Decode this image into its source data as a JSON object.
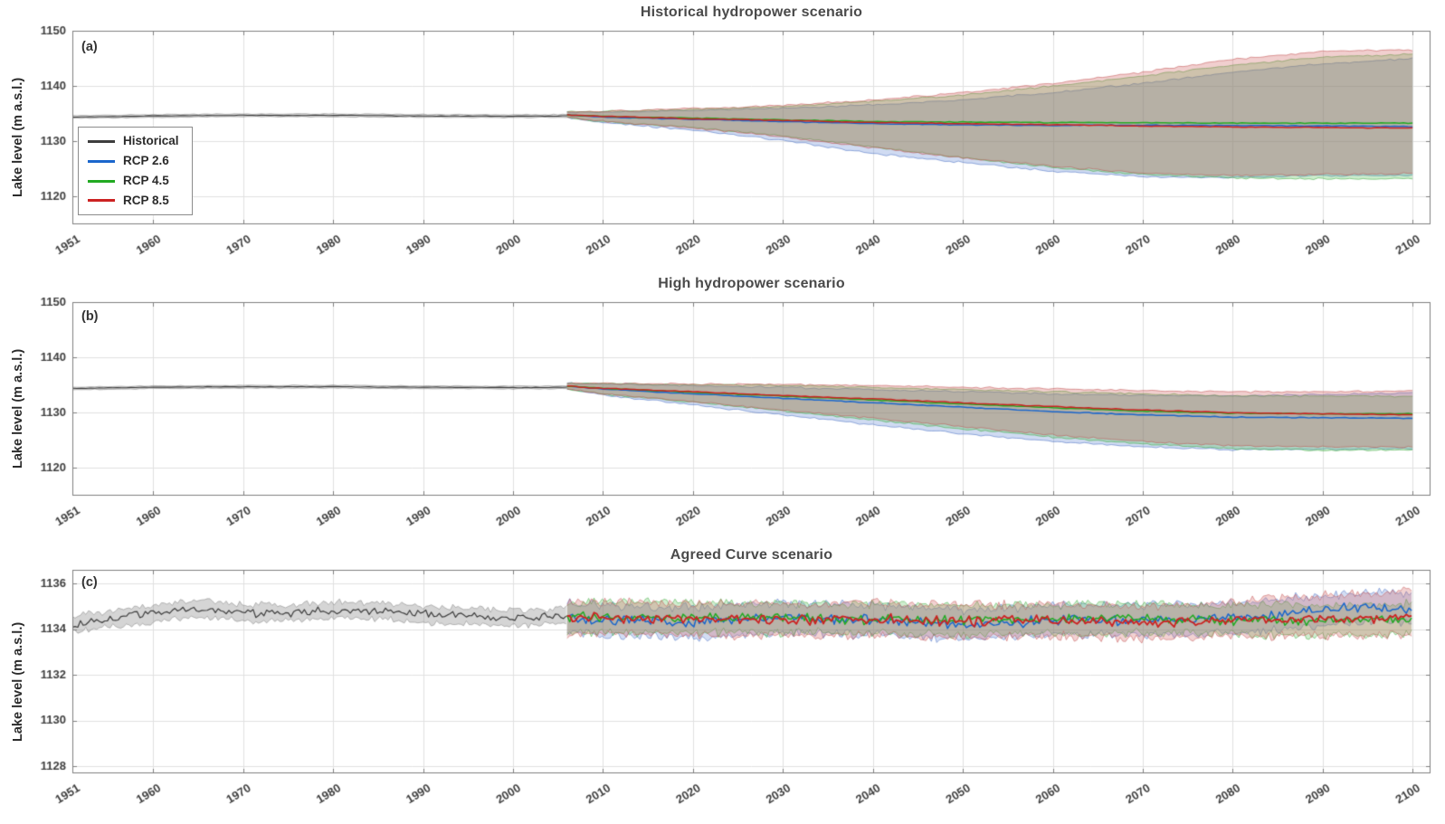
{
  "figure": {
    "background": "#ffffff"
  },
  "legend": {
    "position": "upper-left-inside-panel-a",
    "items": [
      {
        "label": "Historical",
        "color": "#3d3d3d"
      },
      {
        "label": "RCP 2.6",
        "color": "#1a66cc"
      },
      {
        "label": "RCP 4.5",
        "color": "#22aa22"
      },
      {
        "label": "RCP 8.5",
        "color": "#cc2222"
      }
    ]
  },
  "chart_data": [
    {
      "type": "line",
      "panel_label": "(a)",
      "title": "Historical hydropower scenario",
      "xlabel": "",
      "ylabel": "Lake level (m a.s.l.)",
      "xlim": [
        1951,
        2102
      ],
      "ylim": [
        1115,
        1150
      ],
      "xticks": [
        1951,
        1960,
        1970,
        1980,
        1990,
        2000,
        2010,
        2020,
        2030,
        2040,
        2050,
        2060,
        2070,
        2080,
        2090,
        2100
      ],
      "yticks": [
        1120,
        1130,
        1140,
        1150
      ],
      "grid": true,
      "show_legend": true,
      "series": [
        {
          "name": "Historical",
          "color": "#3d3d3d",
          "band_color": "rgba(125,125,125,0.30)",
          "band_edge": "rgba(110,110,110,0.45)",
          "line_width": 1.1,
          "step": 0.5,
          "line_amp": 0.07,
          "band_amp": 0.1,
          "x": [
            1951,
            1960,
            1970,
            1980,
            1990,
            2000,
            2006
          ],
          "y": [
            1134.4,
            1134.6,
            1134.7,
            1134.7,
            1134.6,
            1134.55,
            1134.6
          ],
          "band_low": [
            1134.15,
            1134.35,
            1134.45,
            1134.45,
            1134.35,
            1134.3,
            1134.35
          ],
          "band_high": [
            1134.65,
            1134.85,
            1134.95,
            1134.95,
            1134.85,
            1134.8,
            1134.85
          ]
        },
        {
          "name": "RCP 2.6",
          "color": "#1a66cc",
          "band_color": "rgba(85,125,210,0.28)",
          "band_edge": "rgba(70,110,195,0.55)",
          "line_width": 1.5,
          "step": 0.5,
          "line_amp": 0.09,
          "band_amp": 0.2,
          "x": [
            2006,
            2010,
            2020,
            2030,
            2040,
            2050,
            2060,
            2070,
            2080,
            2090,
            2100
          ],
          "y": [
            1134.8,
            1134.4,
            1134.0,
            1133.6,
            1133.2,
            1133.0,
            1132.9,
            1132.9,
            1132.9,
            1132.8,
            1132.7
          ],
          "band_low": [
            1134.3,
            1133.4,
            1132.0,
            1130.2,
            1127.8,
            1126.2,
            1124.6,
            1123.6,
            1123.5,
            1123.8,
            1123.8
          ],
          "band_high": [
            1135.3,
            1135.3,
            1135.6,
            1136.0,
            1136.6,
            1137.5,
            1138.8,
            1140.5,
            1142.5,
            1144.0,
            1145.0
          ]
        },
        {
          "name": "RCP 4.5",
          "color": "#22aa22",
          "band_color": "rgba(75,190,75,0.28)",
          "band_edge": "rgba(60,170,60,0.55)",
          "line_width": 1.5,
          "step": 0.5,
          "line_amp": 0.09,
          "band_amp": 0.2,
          "x": [
            2006,
            2010,
            2020,
            2030,
            2040,
            2050,
            2060,
            2070,
            2080,
            2090,
            2100
          ],
          "y": [
            1134.8,
            1134.5,
            1134.2,
            1133.9,
            1133.6,
            1133.5,
            1133.4,
            1133.4,
            1133.3,
            1133.3,
            1133.3
          ],
          "band_low": [
            1134.3,
            1133.6,
            1132.5,
            1131.0,
            1129.0,
            1127.0,
            1125.3,
            1124.0,
            1123.4,
            1123.2,
            1123.2
          ],
          "band_high": [
            1135.3,
            1135.4,
            1135.8,
            1136.3,
            1137.2,
            1138.4,
            1140.0,
            1141.8,
            1143.8,
            1145.2,
            1145.8
          ]
        },
        {
          "name": "RCP 8.5",
          "color": "#cc2222",
          "band_color": "rgba(210,95,95,0.30)",
          "band_edge": "rgba(195,80,80,0.55)",
          "line_width": 1.5,
          "step": 0.5,
          "line_amp": 0.09,
          "band_amp": 0.2,
          "x": [
            2006,
            2010,
            2020,
            2030,
            2040,
            2050,
            2060,
            2070,
            2080,
            2090,
            2100
          ],
          "y": [
            1134.8,
            1134.5,
            1134.1,
            1133.8,
            1133.4,
            1133.2,
            1133.0,
            1132.8,
            1132.6,
            1132.5,
            1132.4
          ],
          "band_low": [
            1134.3,
            1133.6,
            1132.4,
            1130.8,
            1128.8,
            1127.0,
            1125.5,
            1124.3,
            1123.8,
            1124.0,
            1124.2
          ],
          "band_high": [
            1135.3,
            1135.4,
            1135.9,
            1136.5,
            1137.5,
            1138.8,
            1140.5,
            1142.5,
            1144.8,
            1146.3,
            1146.5
          ]
        }
      ]
    },
    {
      "type": "line",
      "panel_label": "(b)",
      "title": "High hydropower scenario",
      "xlabel": "",
      "ylabel": "Lake level (m a.s.l.)",
      "xlim": [
        1951,
        2102
      ],
      "ylim": [
        1115,
        1150
      ],
      "xticks": [
        1951,
        1960,
        1970,
        1980,
        1990,
        2000,
        2010,
        2020,
        2030,
        2040,
        2050,
        2060,
        2070,
        2080,
        2090,
        2100
      ],
      "yticks": [
        1120,
        1130,
        1140,
        1150
      ],
      "grid": true,
      "show_legend": false,
      "series": [
        {
          "name": "Historical",
          "color": "#3d3d3d",
          "band_color": "rgba(125,125,125,0.30)",
          "band_edge": "rgba(110,110,110,0.45)",
          "line_width": 1.1,
          "step": 0.5,
          "line_amp": 0.07,
          "band_amp": 0.1,
          "x": [
            1951,
            1960,
            1970,
            1980,
            1990,
            2000,
            2006
          ],
          "y": [
            1134.4,
            1134.6,
            1134.7,
            1134.7,
            1134.6,
            1134.55,
            1134.6
          ],
          "band_low": [
            1134.15,
            1134.35,
            1134.45,
            1134.45,
            1134.35,
            1134.3,
            1134.35
          ],
          "band_high": [
            1134.65,
            1134.85,
            1134.95,
            1134.95,
            1134.85,
            1134.8,
            1134.85
          ]
        },
        {
          "name": "RCP 2.6",
          "color": "#1a66cc",
          "band_color": "rgba(85,125,210,0.28)",
          "band_edge": "rgba(70,110,195,0.55)",
          "line_width": 1.5,
          "step": 0.5,
          "line_amp": 0.09,
          "band_amp": 0.2,
          "x": [
            2006,
            2010,
            2020,
            2030,
            2040,
            2050,
            2060,
            2070,
            2080,
            2090,
            2100
          ],
          "y": [
            1134.8,
            1134.3,
            1133.4,
            1132.6,
            1131.8,
            1131.0,
            1130.2,
            1129.6,
            1129.2,
            1129.1,
            1129.0
          ],
          "band_low": [
            1134.3,
            1133.2,
            1131.4,
            1129.6,
            1127.8,
            1126.2,
            1124.8,
            1123.8,
            1123.3,
            1123.4,
            1123.5
          ],
          "band_high": [
            1135.3,
            1135.2,
            1134.9,
            1134.6,
            1134.2,
            1133.8,
            1133.4,
            1133.1,
            1133.0,
            1133.3,
            1133.6
          ]
        },
        {
          "name": "RCP 4.5",
          "color": "#22aa22",
          "band_color": "rgba(75,190,75,0.28)",
          "band_edge": "rgba(60,170,60,0.55)",
          "line_width": 1.5,
          "step": 0.5,
          "line_amp": 0.09,
          "band_amp": 0.2,
          "x": [
            2006,
            2010,
            2020,
            2030,
            2040,
            2050,
            2060,
            2070,
            2080,
            2090,
            2100
          ],
          "y": [
            1134.8,
            1134.4,
            1133.7,
            1133.0,
            1132.3,
            1131.6,
            1130.9,
            1130.3,
            1129.9,
            1129.8,
            1129.8
          ],
          "band_low": [
            1134.3,
            1133.4,
            1131.9,
            1130.3,
            1128.7,
            1127.1,
            1125.6,
            1124.4,
            1123.5,
            1123.2,
            1123.2
          ],
          "band_high": [
            1135.3,
            1135.3,
            1135.1,
            1134.9,
            1134.6,
            1134.2,
            1133.8,
            1133.4,
            1133.1,
            1133.0,
            1133.0
          ]
        },
        {
          "name": "RCP 8.5",
          "color": "#cc2222",
          "band_color": "rgba(210,95,95,0.30)",
          "band_edge": "rgba(195,80,80,0.55)",
          "line_width": 1.5,
          "step": 0.5,
          "line_amp": 0.09,
          "band_amp": 0.2,
          "x": [
            2006,
            2010,
            2020,
            2030,
            2040,
            2050,
            2060,
            2070,
            2080,
            2090,
            2100
          ],
          "y": [
            1134.8,
            1134.4,
            1133.8,
            1133.1,
            1132.5,
            1131.8,
            1131.1,
            1130.5,
            1130.0,
            1129.8,
            1129.6
          ],
          "band_low": [
            1134.3,
            1133.4,
            1132.0,
            1130.5,
            1129.0,
            1127.5,
            1126.0,
            1124.8,
            1124.0,
            1123.8,
            1123.8
          ],
          "band_high": [
            1135.3,
            1135.3,
            1135.2,
            1135.1,
            1134.9,
            1134.6,
            1134.3,
            1134.0,
            1133.8,
            1133.8,
            1133.9
          ]
        }
      ]
    },
    {
      "type": "line",
      "panel_label": "(c)",
      "title": "Agreed Curve scenario",
      "xlabel": "",
      "ylabel": "Lake level (m a.s.l.)",
      "xlim": [
        1951,
        2102
      ],
      "ylim": [
        1127.7,
        1136.6
      ],
      "xticks": [
        1951,
        1960,
        1970,
        1980,
        1990,
        2000,
        2010,
        2020,
        2030,
        2040,
        2050,
        2060,
        2070,
        2080,
        2090,
        2100
      ],
      "yticks": [
        1128,
        1130,
        1132,
        1134,
        1136
      ],
      "grid": true,
      "show_legend": false,
      "series": [
        {
          "name": "Historical",
          "color": "#3d3d3d",
          "band_color": "rgba(125,125,125,0.32)",
          "band_edge": "rgba(110,110,110,0.45)",
          "line_width": 1.2,
          "step": 0.3,
          "line_amp": 0.22,
          "band_amp": 0.18,
          "x": [
            1951,
            1956,
            1961,
            1966,
            1971,
            1976,
            1981,
            1986,
            1991,
            1996,
            2001,
            2006
          ],
          "y": [
            1134.2,
            1134.5,
            1134.75,
            1134.9,
            1134.7,
            1134.75,
            1134.85,
            1134.8,
            1134.6,
            1134.55,
            1134.5,
            1134.55
          ],
          "band_low": [
            1133.85,
            1134.15,
            1134.4,
            1134.55,
            1134.35,
            1134.4,
            1134.5,
            1134.45,
            1134.25,
            1134.2,
            1134.15,
            1134.2
          ],
          "band_high": [
            1134.55,
            1134.85,
            1135.1,
            1135.25,
            1135.05,
            1135.1,
            1135.2,
            1135.15,
            1134.95,
            1134.9,
            1134.85,
            1134.9
          ]
        },
        {
          "name": "RCP 2.6",
          "color": "#1a66cc",
          "band_color": "rgba(85,125,210,0.26)",
          "band_edge": "rgba(70,110,195,0.5)",
          "line_width": 1.5,
          "step": 0.3,
          "line_amp": 0.26,
          "band_amp": 0.25,
          "x": [
            2006,
            2010,
            2020,
            2030,
            2040,
            2050,
            2060,
            2070,
            2080,
            2090,
            2095,
            2100
          ],
          "y": [
            1134.5,
            1134.4,
            1134.3,
            1134.5,
            1134.4,
            1134.2,
            1134.4,
            1134.4,
            1134.5,
            1134.8,
            1135.0,
            1134.9
          ],
          "band_low": [
            1133.85,
            1133.75,
            1133.65,
            1133.85,
            1133.75,
            1133.55,
            1133.75,
            1133.75,
            1133.85,
            1134.15,
            1134.35,
            1134.25
          ],
          "band_high": [
            1135.15,
            1135.05,
            1134.95,
            1135.15,
            1135.05,
            1134.85,
            1135.05,
            1135.05,
            1135.15,
            1135.45,
            1135.65,
            1135.55
          ]
        },
        {
          "name": "RCP 4.5",
          "color": "#22aa22",
          "band_color": "rgba(75,190,75,0.26)",
          "band_edge": "rgba(60,170,60,0.5)",
          "line_width": 1.5,
          "step": 0.3,
          "line_amp": 0.26,
          "band_amp": 0.25,
          "x": [
            2006,
            2010,
            2020,
            2030,
            2040,
            2050,
            2060,
            2070,
            2080,
            2090,
            2100
          ],
          "y": [
            1134.5,
            1134.55,
            1134.5,
            1134.5,
            1134.45,
            1134.4,
            1134.45,
            1134.5,
            1134.4,
            1134.4,
            1134.45
          ],
          "band_low": [
            1133.85,
            1133.9,
            1133.85,
            1133.85,
            1133.8,
            1133.75,
            1133.8,
            1133.85,
            1133.75,
            1133.75,
            1133.8
          ],
          "band_high": [
            1135.15,
            1135.2,
            1135.15,
            1135.15,
            1135.1,
            1135.05,
            1135.1,
            1135.15,
            1135.05,
            1135.05,
            1135.1
          ]
        },
        {
          "name": "RCP 8.5",
          "color": "#cc2222",
          "band_color": "rgba(210,95,95,0.28)",
          "band_edge": "rgba(195,80,80,0.5)",
          "line_width": 1.8,
          "step": 0.3,
          "line_amp": 0.26,
          "band_amp": 0.25,
          "x": [
            2006,
            2010,
            2020,
            2030,
            2040,
            2050,
            2060,
            2070,
            2080,
            2090,
            2100
          ],
          "y": [
            1134.5,
            1134.5,
            1134.45,
            1134.4,
            1134.45,
            1134.35,
            1134.4,
            1134.3,
            1134.4,
            1134.45,
            1134.5
          ],
          "band_low": [
            1133.8,
            1133.8,
            1133.75,
            1133.7,
            1133.75,
            1133.65,
            1133.7,
            1133.6,
            1133.7,
            1133.75,
            1133.8
          ],
          "band_high": [
            1135.2,
            1135.2,
            1135.15,
            1135.1,
            1135.15,
            1135.05,
            1135.1,
            1135.0,
            1135.2,
            1135.5,
            1135.7
          ]
        }
      ]
    }
  ]
}
